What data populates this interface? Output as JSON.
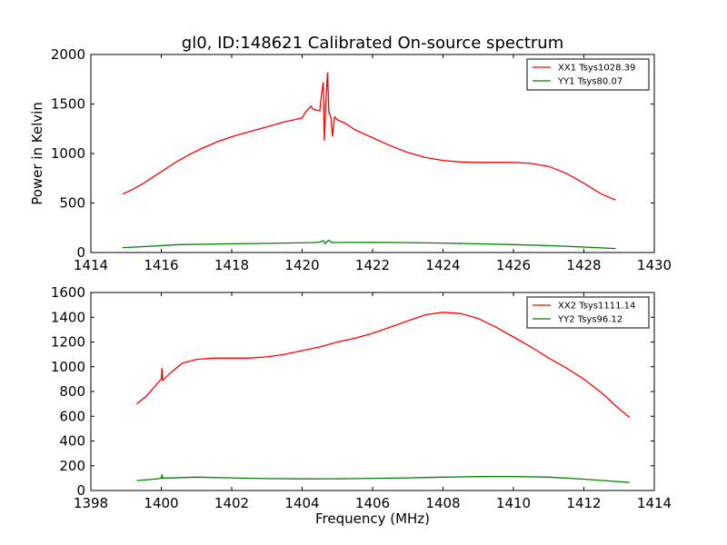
{
  "figure": {
    "title": "gl0, ID:148621 Calibrated On-source spectrum",
    "ylabel": "Power in Kelvin",
    "xlabel": "Frequency (MHz)"
  },
  "chart_data": [
    {
      "type": "line",
      "xlim": [
        1414,
        1430
      ],
      "ylim": [
        0,
        2000
      ],
      "xticks": [
        1414,
        1416,
        1418,
        1420,
        1422,
        1424,
        1426,
        1428,
        1430
      ],
      "yticks": [
        0,
        500,
        1000,
        1500,
        2000
      ],
      "legend_position": "top-right",
      "series": [
        {
          "name": "XX1 Tsys1028.39",
          "color": "#ff0000",
          "points": [
            [
              1414.9,
              590
            ],
            [
              1415.2,
              640
            ],
            [
              1415.5,
              700
            ],
            [
              1415.8,
              770
            ],
            [
              1416.1,
              840
            ],
            [
              1416.4,
              910
            ],
            [
              1416.8,
              990
            ],
            [
              1417.2,
              1060
            ],
            [
              1417.6,
              1120
            ],
            [
              1418.0,
              1170
            ],
            [
              1418.5,
              1220
            ],
            [
              1419.0,
              1270
            ],
            [
              1419.5,
              1320
            ],
            [
              1419.9,
              1350
            ],
            [
              1420.0,
              1360
            ],
            [
              1420.1,
              1420
            ],
            [
              1420.2,
              1460
            ],
            [
              1420.25,
              1480
            ],
            [
              1420.3,
              1450
            ],
            [
              1420.4,
              1440
            ],
            [
              1420.5,
              1430
            ],
            [
              1420.55,
              1600
            ],
            [
              1420.6,
              1720
            ],
            [
              1420.63,
              1130
            ],
            [
              1420.67,
              1500
            ],
            [
              1420.72,
              1820
            ],
            [
              1420.76,
              1420
            ],
            [
              1420.82,
              1360
            ],
            [
              1420.86,
              1170
            ],
            [
              1420.92,
              1370
            ],
            [
              1421.0,
              1340
            ],
            [
              1421.2,
              1310
            ],
            [
              1421.5,
              1240
            ],
            [
              1422.0,
              1160
            ],
            [
              1422.5,
              1080
            ],
            [
              1423.0,
              1010
            ],
            [
              1423.5,
              960
            ],
            [
              1424.0,
              930
            ],
            [
              1424.5,
              915
            ],
            [
              1425.0,
              910
            ],
            [
              1425.5,
              910
            ],
            [
              1426.0,
              910
            ],
            [
              1426.5,
              900
            ],
            [
              1427.0,
              870
            ],
            [
              1427.5,
              800
            ],
            [
              1428.0,
              700
            ],
            [
              1428.5,
              590
            ],
            [
              1428.9,
              530
            ]
          ]
        },
        {
          "name": "YY1 Tsys80.07",
          "color": "#008000",
          "points": [
            [
              1414.9,
              50
            ],
            [
              1415.5,
              60
            ],
            [
              1416.5,
              80
            ],
            [
              1418,
              88
            ],
            [
              1419.5,
              95
            ],
            [
              1420.3,
              100
            ],
            [
              1420.5,
              105
            ],
            [
              1420.6,
              120
            ],
            [
              1420.65,
              90
            ],
            [
              1420.75,
              125
            ],
            [
              1420.85,
              100
            ],
            [
              1421,
              102
            ],
            [
              1422,
              103
            ],
            [
              1423,
              100
            ],
            [
              1424,
              95
            ],
            [
              1425,
              88
            ],
            [
              1426,
              80
            ],
            [
              1427,
              70
            ],
            [
              1428,
              55
            ],
            [
              1428.9,
              40
            ]
          ]
        }
      ]
    },
    {
      "type": "line",
      "xlim": [
        1398,
        1414
      ],
      "ylim": [
        0,
        1600
      ],
      "xticks": [
        1398,
        1400,
        1402,
        1404,
        1406,
        1408,
        1410,
        1412,
        1414
      ],
      "yticks": [
        0,
        200,
        400,
        600,
        800,
        1000,
        1200,
        1400,
        1600
      ],
      "legend_position": "top-right",
      "series": [
        {
          "name": "XX2 Tsys1111.14",
          "color": "#ff0000",
          "points": [
            [
              1399.3,
              700
            ],
            [
              1399.6,
              770
            ],
            [
              1399.9,
              870
            ],
            [
              1400.0,
              900
            ],
            [
              1400.02,
              990
            ],
            [
              1400.04,
              890
            ],
            [
              1400.3,
              960
            ],
            [
              1400.6,
              1030
            ],
            [
              1401,
              1060
            ],
            [
              1401.5,
              1070
            ],
            [
              1402,
              1070
            ],
            [
              1402.5,
              1070
            ],
            [
              1403,
              1080
            ],
            [
              1403.5,
              1100
            ],
            [
              1404,
              1130
            ],
            [
              1404.5,
              1160
            ],
            [
              1405,
              1200
            ],
            [
              1405.5,
              1230
            ],
            [
              1406,
              1270
            ],
            [
              1406.5,
              1320
            ],
            [
              1407,
              1370
            ],
            [
              1407.5,
              1420
            ],
            [
              1408,
              1440
            ],
            [
              1408.5,
              1430
            ],
            [
              1409,
              1390
            ],
            [
              1409.5,
              1320
            ],
            [
              1410,
              1240
            ],
            [
              1410.5,
              1160
            ],
            [
              1411,
              1070
            ],
            [
              1411.5,
              990
            ],
            [
              1412,
              900
            ],
            [
              1412.5,
              790
            ],
            [
              1413,
              660
            ],
            [
              1413.3,
              590
            ]
          ]
        },
        {
          "name": "YY2 Tsys96.12",
          "color": "#008000",
          "points": [
            [
              1399.3,
              80
            ],
            [
              1399.9,
              95
            ],
            [
              1400.0,
              100
            ],
            [
              1400.02,
              130
            ],
            [
              1400.04,
              100
            ],
            [
              1401,
              108
            ],
            [
              1402,
              102
            ],
            [
              1403,
              96
            ],
            [
              1404,
              94
            ],
            [
              1405,
              95
            ],
            [
              1406,
              98
            ],
            [
              1407,
              102
            ],
            [
              1408,
              108
            ],
            [
              1409,
              112
            ],
            [
              1410,
              113
            ],
            [
              1411,
              108
            ],
            [
              1412,
              92
            ],
            [
              1413.3,
              65
            ]
          ]
        }
      ]
    }
  ]
}
